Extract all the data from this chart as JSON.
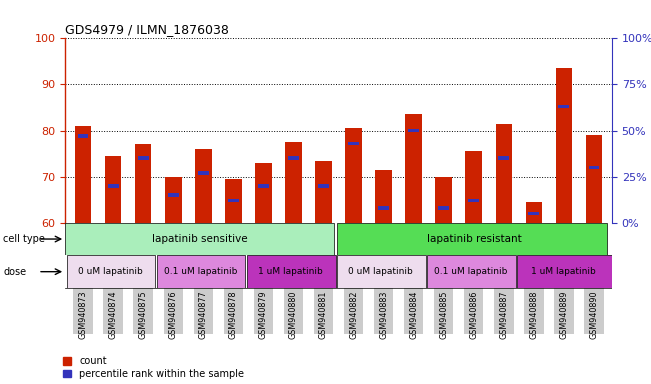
{
  "title": "GDS4979 / ILMN_1876038",
  "samples": [
    "GSM940873",
    "GSM940874",
    "GSM940875",
    "GSM940876",
    "GSM940877",
    "GSM940878",
    "GSM940879",
    "GSM940880",
    "GSM940881",
    "GSM940882",
    "GSM940883",
    "GSM940884",
    "GSM940885",
    "GSM940886",
    "GSM940887",
    "GSM940888",
    "GSM940889",
    "GSM940890"
  ],
  "red_values": [
    81,
    74.5,
    77,
    70,
    76,
    69.5,
    73,
    77.5,
    73.5,
    80.5,
    71.5,
    83.5,
    70,
    75.5,
    81.5,
    64.5,
    93.5,
    79
  ],
  "blue_values": [
    47,
    20,
    35,
    15,
    27,
    12,
    20,
    35,
    20,
    43,
    8,
    50,
    8,
    12,
    35,
    5,
    63,
    30
  ],
  "ylim_left": [
    60,
    100
  ],
  "ylim_right": [
    0,
    100
  ],
  "yticks_left": [
    60,
    70,
    80,
    90,
    100
  ],
  "yticks_right": [
    0,
    25,
    50,
    75,
    100
  ],
  "ytick_labels_right": [
    "0%",
    "25%",
    "50%",
    "75%",
    "100%"
  ],
  "bar_color_red": "#CC2200",
  "bar_color_blue": "#3333BB",
  "cell_type_sensitive_color": "#AAEEBB",
  "cell_type_resistant_color": "#55DD55",
  "dose_colors": [
    "#EEDDEE",
    "#DD88DD",
    "#BB33BB"
  ],
  "dose_labels": [
    "0 uM lapatinib",
    "0.1 uM lapatinib",
    "1 uM lapatinib"
  ],
  "left_axis_color": "#CC2200",
  "right_axis_color": "#3333BB",
  "xtick_bg_color": "#CCCCCC"
}
